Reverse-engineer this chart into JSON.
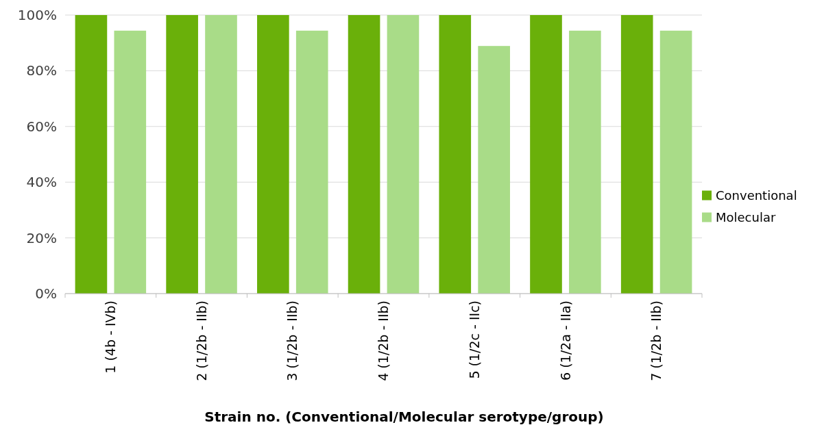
{
  "chart_data": {
    "type": "bar",
    "xlabel": "Strain no. (Conventional/Molecular serotype/group)",
    "categories": [
      "1 (4b - IVb)",
      "2 (1/2b - IIb)",
      "3 (1/2b - IIb)",
      "4 (1/2b - IIb)",
      "5 (1/2c - IIc)",
      "6 (1/2a - IIa)",
      "7 (1/2b - IIb)"
    ],
    "series": [
      {
        "name": "Conventional",
        "color": "#6ab00a",
        "values": [
          100,
          100,
          100,
          100,
          100,
          100,
          100
        ]
      },
      {
        "name": "Molecular",
        "color": "#a9dc88",
        "values": [
          94.4,
          100,
          94.4,
          100,
          88.9,
          94.4,
          94.4
        ]
      }
    ],
    "ylim": [
      0,
      100
    ],
    "yticks": [
      {
        "value": 0,
        "label": "0%"
      },
      {
        "value": 20,
        "label": "20%"
      },
      {
        "value": 40,
        "label": "40%"
      },
      {
        "value": 60,
        "label": "60%"
      },
      {
        "value": 80,
        "label": "80%"
      },
      {
        "value": 100,
        "label": "100%"
      }
    ],
    "grid": "y",
    "legend": "right"
  }
}
